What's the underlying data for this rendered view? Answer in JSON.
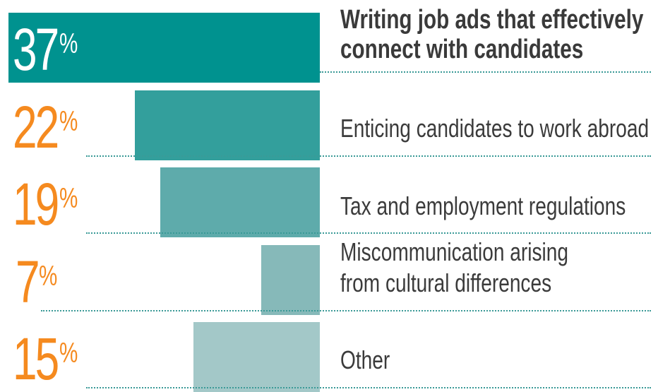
{
  "chart_data": {
    "type": "bar",
    "orientation": "horizontal",
    "categories": [
      "Writing job ads that effectively connect with candidates",
      "Enticing candidates to work abroad",
      "Tax and employment regulations",
      "Miscommunication arising from cultural differences",
      "Other"
    ],
    "values": [
      37,
      22,
      19,
      7,
      15
    ],
    "value_labels": [
      {
        "number": "37",
        "sign": "%"
      },
      {
        "number": "22",
        "sign": "%"
      },
      {
        "number": "19",
        "sign": "%"
      },
      {
        "number": "7",
        "sign": "%"
      },
      {
        "number": "15",
        "sign": "%"
      }
    ],
    "label_lines": [
      [
        "Writing job ads that effectively",
        "connect with candidates"
      ],
      [
        "Enticing candidates to work abroad"
      ],
      [
        "Tax and employment regulations"
      ],
      [
        "Miscommunication arising",
        "from cultural differences"
      ],
      [
        "Other"
      ]
    ],
    "bar_colors": [
      "#00928f",
      "#339f9c",
      "#5eabab",
      "#86b9b9",
      "#a3c8c8"
    ],
    "value_colors": [
      "#ffffff",
      "#f58a1f",
      "#f58a1f",
      "#f58a1f",
      "#f58a1f"
    ],
    "highlight_index": 0,
    "dotted_line_color": "#3a9a97",
    "title": "",
    "xlabel": "",
    "ylabel": "",
    "xlim": [
      0,
      37
    ]
  }
}
